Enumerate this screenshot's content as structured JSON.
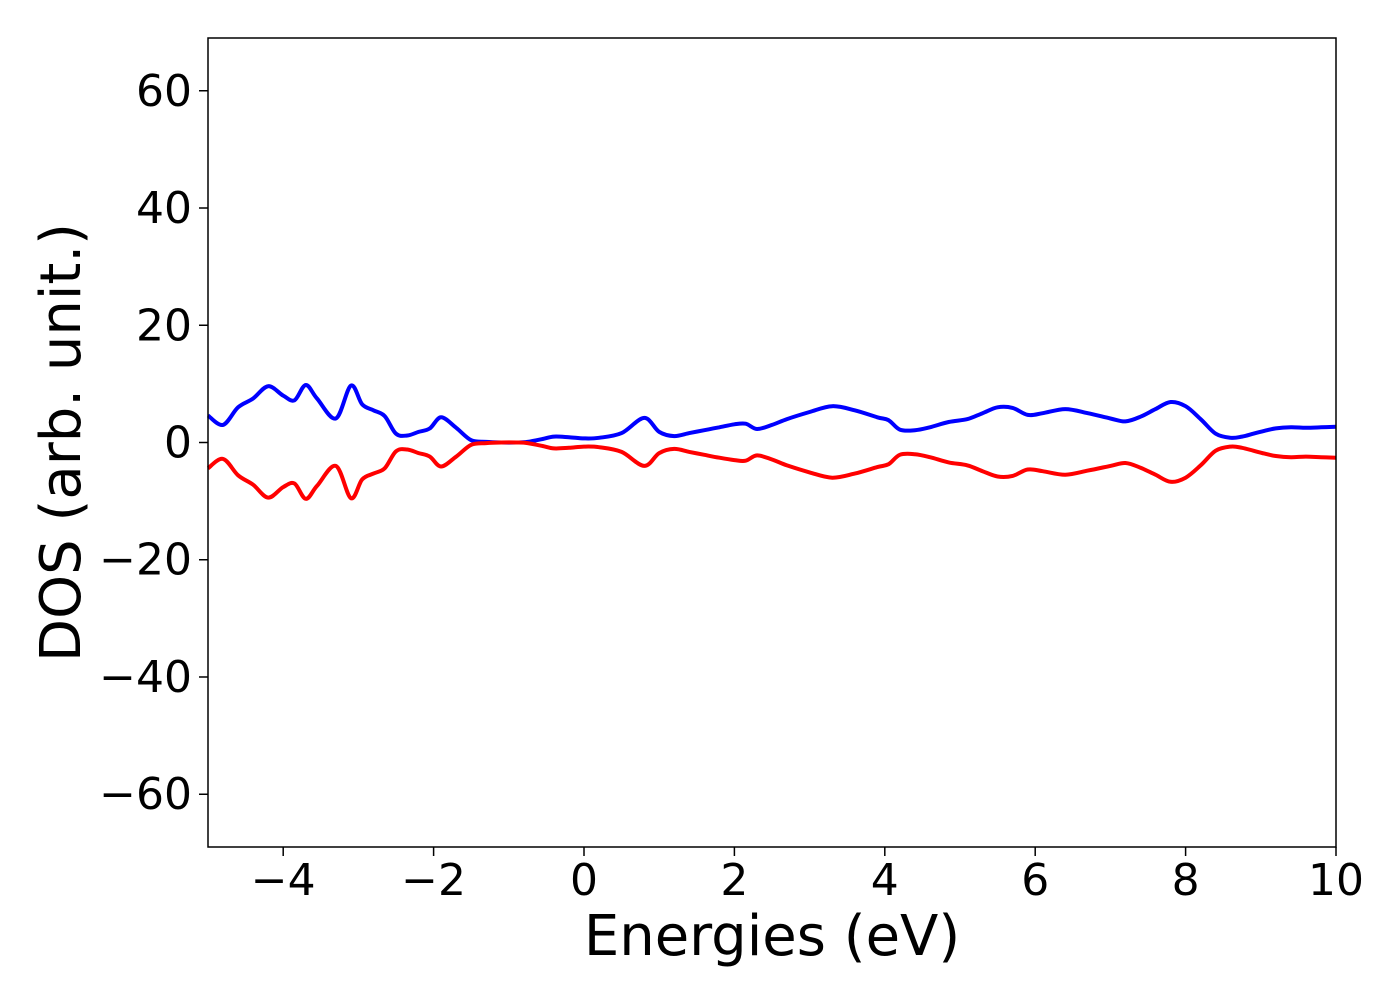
{
  "chart_data": {
    "type": "line",
    "xlabel": "Energies (eV)",
    "ylabel": "DOS (arb. unit.)",
    "xlim": [
      -5,
      10
    ],
    "ylim": [
      -69,
      69
    ],
    "x_ticks": [
      -4,
      -2,
      0,
      2,
      4,
      6,
      8,
      10
    ],
    "x_tick_labels": [
      "−4",
      "−2",
      "0",
      "2",
      "4",
      "6",
      "8",
      "10"
    ],
    "y_ticks": [
      -60,
      -40,
      -20,
      0,
      20,
      40,
      60
    ],
    "y_tick_labels": [
      "−60",
      "−40",
      "−20",
      "0",
      "20",
      "40",
      "60"
    ],
    "grid": false,
    "series": [
      {
        "color": "#0000ff",
        "x": [
          -5.0,
          -4.8,
          -4.6,
          -4.4,
          -4.2,
          -4.0,
          -3.85,
          -3.7,
          -3.55,
          -3.3,
          -3.1,
          -2.95,
          -2.8,
          -2.65,
          -2.5,
          -2.35,
          -2.2,
          -2.05,
          -1.9,
          -1.7,
          -1.5,
          -1.3,
          -1.1,
          -0.9,
          -0.75,
          -0.55,
          -0.4,
          -0.2,
          0.0,
          0.2,
          0.5,
          0.8,
          1.0,
          1.2,
          1.4,
          1.6,
          1.8,
          2.0,
          2.15,
          2.3,
          2.5,
          2.7,
          3.0,
          3.3,
          3.6,
          3.9,
          4.05,
          4.2,
          4.4,
          4.6,
          4.85,
          5.1,
          5.3,
          5.5,
          5.7,
          5.9,
          6.1,
          6.4,
          6.7,
          7.0,
          7.2,
          7.4,
          7.6,
          7.8,
          8.0,
          8.2,
          8.4,
          8.6,
          8.75,
          8.9,
          9.05,
          9.2,
          9.4,
          9.6,
          9.8,
          10.0
        ],
        "y": [
          4.6,
          3.0,
          6.0,
          7.5,
          9.6,
          8.0,
          7.2,
          9.8,
          7.5,
          4.1,
          9.7,
          6.5,
          5.5,
          4.5,
          1.5,
          1.2,
          1.8,
          2.4,
          4.3,
          2.5,
          0.4,
          0.1,
          0.0,
          0.0,
          0.1,
          0.6,
          1.0,
          0.9,
          0.7,
          0.8,
          1.6,
          4.2,
          1.8,
          1.1,
          1.6,
          2.1,
          2.6,
          3.1,
          3.2,
          2.3,
          3.0,
          4.0,
          5.2,
          6.2,
          5.5,
          4.3,
          3.8,
          2.2,
          2.1,
          2.6,
          3.5,
          4.0,
          5.0,
          6.0,
          5.9,
          4.7,
          5.0,
          5.7,
          5.0,
          4.1,
          3.6,
          4.4,
          5.7,
          6.9,
          6.2,
          4.0,
          1.5,
          0.8,
          1.0,
          1.5,
          2.0,
          2.4,
          2.6,
          2.5,
          2.6,
          2.7
        ]
      },
      {
        "color": "#ff0000",
        "x": [
          -5.0,
          -4.8,
          -4.6,
          -4.4,
          -4.2,
          -4.0,
          -3.85,
          -3.7,
          -3.55,
          -3.3,
          -3.1,
          -2.95,
          -2.8,
          -2.65,
          -2.5,
          -2.35,
          -2.2,
          -2.05,
          -1.9,
          -1.7,
          -1.5,
          -1.3,
          -1.1,
          -0.9,
          -0.75,
          -0.55,
          -0.4,
          -0.2,
          0.0,
          0.2,
          0.5,
          0.8,
          1.0,
          1.2,
          1.4,
          1.6,
          1.8,
          2.0,
          2.15,
          2.3,
          2.5,
          2.7,
          3.0,
          3.3,
          3.6,
          3.9,
          4.05,
          4.2,
          4.4,
          4.6,
          4.85,
          5.1,
          5.3,
          5.5,
          5.7,
          5.9,
          6.1,
          6.4,
          6.7,
          7.0,
          7.2,
          7.4,
          7.6,
          7.8,
          8.0,
          8.2,
          8.4,
          8.6,
          8.75,
          8.9,
          9.05,
          9.2,
          9.4,
          9.6,
          9.8,
          10.0
        ],
        "y": [
          -4.4,
          -2.8,
          -5.6,
          -7.2,
          -9.4,
          -7.6,
          -7.0,
          -9.6,
          -7.4,
          -4.0,
          -9.5,
          -6.3,
          -5.3,
          -4.4,
          -1.5,
          -1.2,
          -1.8,
          -2.4,
          -4.1,
          -2.4,
          -0.4,
          -0.1,
          0.0,
          0.0,
          -0.1,
          -0.6,
          -1.0,
          -0.9,
          -0.7,
          -0.8,
          -1.6,
          -4.0,
          -1.8,
          -1.1,
          -1.6,
          -2.1,
          -2.6,
          -3.0,
          -3.1,
          -2.2,
          -2.9,
          -3.9,
          -5.1,
          -6.0,
          -5.3,
          -4.2,
          -3.7,
          -2.1,
          -2.0,
          -2.5,
          -3.4,
          -3.9,
          -4.9,
          -5.8,
          -5.7,
          -4.6,
          -4.9,
          -5.5,
          -4.8,
          -4.0,
          -3.5,
          -4.3,
          -5.5,
          -6.7,
          -6.0,
          -3.9,
          -1.4,
          -0.7,
          -0.9,
          -1.4,
          -1.9,
          -2.3,
          -2.5,
          -2.4,
          -2.5,
          -2.6
        ]
      }
    ]
  }
}
